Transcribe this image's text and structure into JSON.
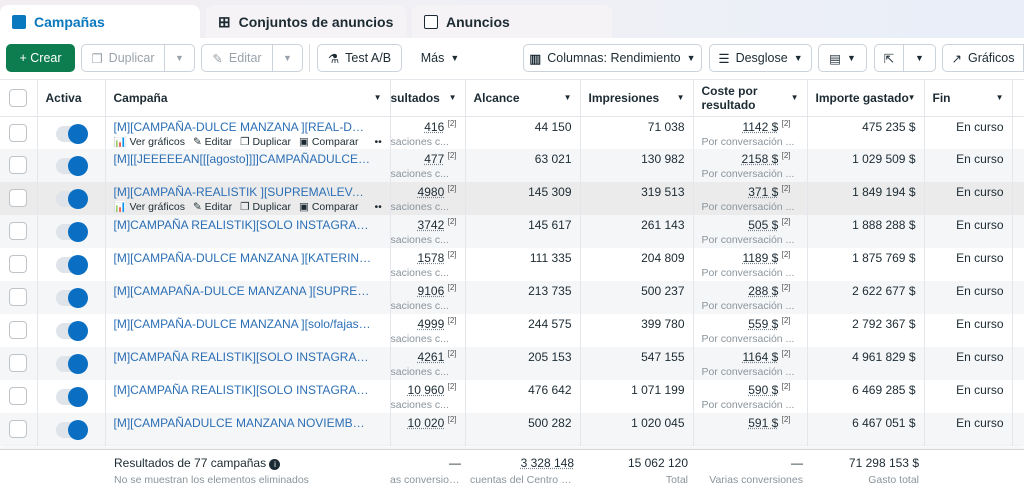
{
  "tabs": [
    {
      "label": "Campañas",
      "icon": "campaign-icon"
    },
    {
      "label": "Conjuntos de anuncios",
      "icon": "grid-icon"
    },
    {
      "label": "Anuncios",
      "icon": "ad-window-icon"
    }
  ],
  "toolbar": {
    "create": "+ Crear",
    "duplicate": "Duplicar",
    "edit": "Editar",
    "ab_test": "Test A/B",
    "more": "Más",
    "columns": "Columnas: Rendimiento",
    "breakdown": "Desglose",
    "charts": "Gráficos"
  },
  "columns": {
    "active": "Activa",
    "campaign": "Campaña",
    "results": "sultados",
    "reach": "Alcance",
    "impressions": "Impresiones",
    "cost": "Coste por resultado",
    "spent": "Importe gastado",
    "end": "Fin"
  },
  "row_actions": {
    "charts": "Ver gráficos",
    "edit": "Editar",
    "duplicate": "Duplicar",
    "compare": "Comparar",
    "more": "•••"
  },
  "rows": [
    {
      "name": "[M][CAMPAÑA-DULCE MANZANA ][REAL-DX] [ABR...",
      "results": "416",
      "results_sub": "saciones c...",
      "reach": "44 150",
      "impressions": "71 038",
      "cost": "1142 $",
      "cost_sub": "Por conversación ...",
      "spent": "475 235 $",
      "end": "En curso",
      "active": true,
      "actions": true
    },
    {
      "name": "[M][[JEEEEEAN[[[agosto]]]]CAMPAÑADULCE MAN...",
      "results": "477",
      "results_sub": "saciones c...",
      "reach": "63 021",
      "impressions": "130 982",
      "cost": "2158 $",
      "cost_sub": "Por conversación ...",
      "spent": "1 029 509 $",
      "end": "En curso",
      "active": true
    },
    {
      "name": "[M][CAMPAÑA-REALISTIK ][SUPREMA\\LEVANTA ...",
      "results": "4980",
      "results_sub": "saciones c...",
      "reach": "145 309",
      "impressions": "319 513",
      "cost": "371 $",
      "cost_sub": "Por conversación ...",
      "spent": "1 849 194 $",
      "end": "En curso",
      "active": true,
      "actions": true,
      "hover": true
    },
    {
      "name": "[M]CAMPAÑA REALISTIK][SOLO INSTAGRAM][FEB...",
      "results": "3742",
      "results_sub": "saciones c...",
      "reach": "145 617",
      "impressions": "261 143",
      "cost": "505 $",
      "cost_sub": "Por conversación ...",
      "spent": "1 888 288 $",
      "end": "En curso",
      "active": true
    },
    {
      "name": "[M][CAMPAÑA-DULCE MANZANA ][KATERIN\\PELA...",
      "results": "1578",
      "results_sub": "saciones c...",
      "reach": "111 335",
      "impressions": "204 809",
      "cost": "1189 $",
      "cost_sub": "Por conversación ...",
      "spent": "1 875 769 $",
      "end": "En curso",
      "active": true
    },
    {
      "name": "[M][CAMAPAÑA-DULCE MANZANA ][SUPREMA\\LE...",
      "results": "9106",
      "results_sub": "saciones c...",
      "reach": "213 735",
      "impressions": "500 237",
      "cost": "288 $",
      "cost_sub": "Por conversación ...",
      "spent": "2 622 677 $",
      "end": "En curso",
      "active": true
    },
    {
      "name": "[M][CAMPAÑA-DULCE MANZANA ][solo/fajas] [Mar...",
      "results": "4999",
      "results_sub": "saciones c...",
      "reach": "244 575",
      "impressions": "399 780",
      "cost": "559 $",
      "cost_sub": "Por conversación ...",
      "spent": "2 792 367 $",
      "end": "En curso",
      "active": true
    },
    {
      "name": "[M]CAMPAÑA REALISTIK][SOLO INSTAGRAM][FEB...",
      "results": "4261",
      "results_sub": "saciones c...",
      "reach": "205 153",
      "impressions": "547 155",
      "cost": "1164 $",
      "cost_sub": "Por conversación ...",
      "spent": "4 961 829 $",
      "end": "En curso",
      "active": true
    },
    {
      "name": "[M]CAMPAÑA REALISTIK][SOLO INSTAGRAM][FEB...",
      "results": "10 960",
      "results_sub": "saciones c...",
      "reach": "476 642",
      "impressions": "1 071 199",
      "cost": "590 $",
      "cost_sub": "Por conversación ...",
      "spent": "6 469 285 $",
      "end": "En curso",
      "active": true
    },
    {
      "name": "[M][CAMPAÑADULCE MANZANA NOVIEMBRE] [FE...",
      "results": "10 020",
      "results_sub": "",
      "reach": "500 282",
      "impressions": "1 020 045",
      "cost": "591 $",
      "cost_sub": "",
      "spent": "6 467 051 $",
      "end": "En curso",
      "active": true
    }
  ],
  "footer": {
    "title": "Resultados de 77 campañas",
    "note": "No se muestran los elementos eliminados",
    "results": "—",
    "results_sub": "as conversiones",
    "reach": "3 328 148",
    "reach_sub": "cuentas del Centro d...",
    "impressions": "15 062 120",
    "impressions_sub": "Total",
    "cost": "—",
    "cost_sub": "Varias conversiones",
    "spent": "71 298 153 $",
    "spent_sub": "Gasto total"
  },
  "colors": {
    "accent": "#0a78be",
    "create": "#0d7d4f",
    "link": "#2c6fb5"
  }
}
